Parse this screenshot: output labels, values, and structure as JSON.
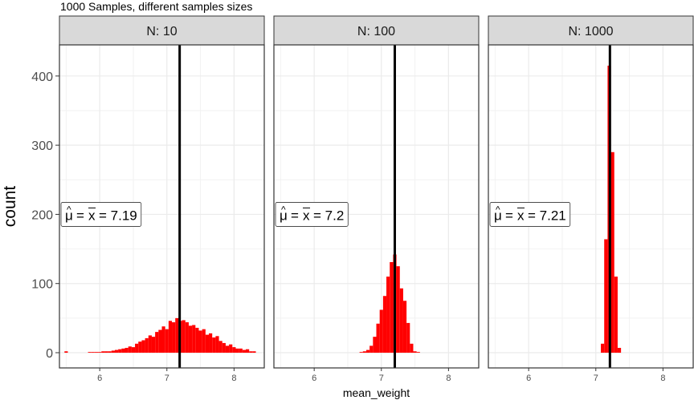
{
  "chart_data": {
    "type": "bar",
    "title": "1000 Samples, different samples sizes",
    "xlabel": "mean_weight",
    "ylabel": "count",
    "ylim": [
      -22,
      445
    ],
    "xlim": [
      5.4,
      8.45
    ],
    "y_ticks": [
      0,
      100,
      200,
      300,
      400
    ],
    "x_ticks": [
      6,
      7,
      8
    ],
    "grid": true,
    "vline_color": "#000000",
    "bar_color": "#ff0000",
    "panel_header_color": "#d9d9d9",
    "panels": [
      {
        "strip_label": "N: 10",
        "annotation": "= 7.19",
        "mean": 7.19,
        "bin_width": 0.05,
        "bins": [
          [
            5.5,
            2
          ],
          [
            5.85,
            1
          ],
          [
            5.9,
            1
          ],
          [
            5.95,
            1
          ],
          [
            6.0,
            1
          ],
          [
            6.05,
            2
          ],
          [
            6.1,
            2
          ],
          [
            6.15,
            2
          ],
          [
            6.2,
            3
          ],
          [
            6.25,
            4
          ],
          [
            6.3,
            5
          ],
          [
            6.35,
            6
          ],
          [
            6.4,
            7
          ],
          [
            6.45,
            9
          ],
          [
            6.5,
            8
          ],
          [
            6.55,
            13
          ],
          [
            6.6,
            16
          ],
          [
            6.65,
            18
          ],
          [
            6.7,
            21
          ],
          [
            6.75,
            25
          ],
          [
            6.8,
            23
          ],
          [
            6.85,
            30
          ],
          [
            6.9,
            33
          ],
          [
            6.95,
            38
          ],
          [
            7.0,
            34
          ],
          [
            7.05,
            46
          ],
          [
            7.1,
            44
          ],
          [
            7.15,
            50
          ],
          [
            7.2,
            46
          ],
          [
            7.25,
            47
          ],
          [
            7.3,
            44
          ],
          [
            7.35,
            39
          ],
          [
            7.4,
            40
          ],
          [
            7.45,
            36
          ],
          [
            7.5,
            32
          ],
          [
            7.55,
            34
          ],
          [
            7.6,
            26
          ],
          [
            7.65,
            28
          ],
          [
            7.7,
            22
          ],
          [
            7.75,
            24
          ],
          [
            7.8,
            17
          ],
          [
            7.85,
            14
          ],
          [
            7.9,
            10
          ],
          [
            7.95,
            12
          ],
          [
            8.0,
            8
          ],
          [
            8.05,
            6
          ],
          [
            8.1,
            6
          ],
          [
            8.15,
            4
          ],
          [
            8.2,
            5
          ],
          [
            8.25,
            2
          ],
          [
            8.3,
            2
          ]
        ]
      },
      {
        "strip_label": "N: 100",
        "annotation": "= 7.2",
        "mean": 7.2,
        "bin_width": 0.05,
        "bins": [
          [
            6.7,
            1
          ],
          [
            6.75,
            2
          ],
          [
            6.8,
            4
          ],
          [
            6.85,
            10
          ],
          [
            6.9,
            23
          ],
          [
            6.95,
            42
          ],
          [
            7.0,
            62
          ],
          [
            7.05,
            82
          ],
          [
            7.1,
            110
          ],
          [
            7.15,
            131
          ],
          [
            7.2,
            142
          ],
          [
            7.25,
            125
          ],
          [
            7.3,
            93
          ],
          [
            7.35,
            75
          ],
          [
            7.4,
            43
          ],
          [
            7.45,
            13
          ],
          [
            7.5,
            2
          ],
          [
            7.55,
            1
          ]
        ]
      },
      {
        "strip_label": "N: 1000",
        "annotation": "= 7.21",
        "mean": 7.21,
        "bin_width": 0.05,
        "bins": [
          [
            7.1,
            13
          ],
          [
            7.15,
            164
          ],
          [
            7.2,
            415
          ],
          [
            7.25,
            290
          ],
          [
            7.3,
            110
          ],
          [
            7.35,
            7
          ]
        ]
      }
    ]
  }
}
